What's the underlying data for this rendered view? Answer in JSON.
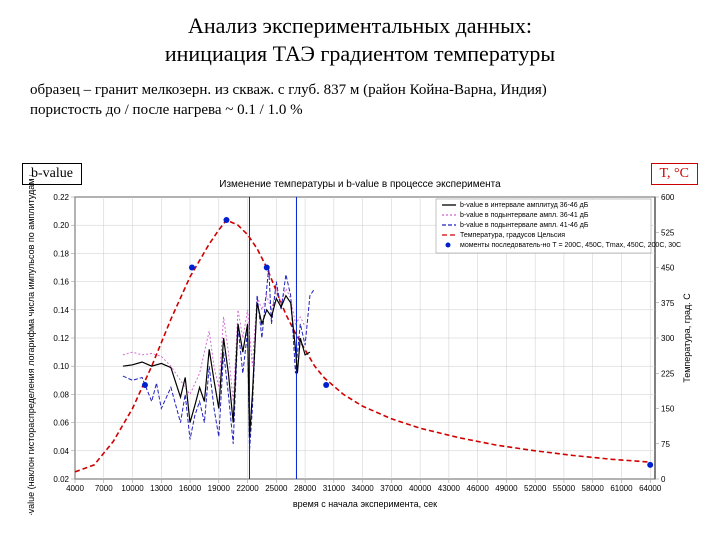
{
  "title_line1": "Анализ экспериментальных данных:",
  "title_line2": "инициация ТАЭ градиентом температуры",
  "subtitle_line1": "образец – гранит мелкозерн. из скваж. с глуб. 837 м (район Койна-Варна, Индия)",
  "subtitle_line2": "пористость до / после нагрева ~ 0.1 / 1.0 %",
  "box_left": "b-value",
  "box_right": "T, °C",
  "chart": {
    "type": "line",
    "title": "Изменение температуры и b-value в процессе эксперимента",
    "xlabel": "время с начала эксперимента, сек",
    "ylabel_left": "b-value (наклон гистораспределения логарифма числа импульсов по амплитудам в дБ)",
    "ylabel_right": "Температура, град. С",
    "plot_bg": "#ffffff",
    "grid_color": "#cccccc",
    "border_color": "#000000",
    "xlim": [
      4000,
      64500
    ],
    "xtick_step": 3000,
    "xticks": [
      4000,
      7000,
      10000,
      13000,
      16000,
      19000,
      22000,
      25000,
      28000,
      31000,
      34000,
      37000,
      40000,
      43000,
      46000,
      49000,
      52000,
      55000,
      58000,
      61000,
      64000
    ],
    "y_left": {
      "lim": [
        0.02,
        0.22
      ],
      "ticks": [
        0.02,
        0.04,
        0.06,
        0.08,
        0.1,
        0.12,
        0.14,
        0.16,
        0.18,
        0.2,
        0.22
      ]
    },
    "y_right": {
      "lim": [
        0,
        600
      ],
      "ticks": [
        0,
        75,
        150,
        225,
        300,
        375,
        450,
        525,
        600
      ]
    },
    "legend": {
      "pos": "top-right",
      "items": [
        {
          "label": "b-value в интервале амплитуд 36-46 дБ",
          "color": "#000000",
          "dash": "",
          "marker": "none"
        },
        {
          "label": "b-value в подынтервале ампл. 36-41 дБ",
          "color": "#d060d0",
          "dash": "2,2",
          "marker": "none"
        },
        {
          "label": "b-value в подынтервале ампл. 41-46 дБ",
          "color": "#2020c0",
          "dash": "4,2",
          "marker": "none"
        },
        {
          "label": "Температура, градусов Цельсия",
          "color": "#d00000",
          "dash": "5,3",
          "marker": "none"
        },
        {
          "label": "моменты последователь-но T = 200C, 450C, Tmax, 450C, 200C, 30C",
          "color": "#0020d0",
          "dash": "",
          "marker": "dot"
        }
      ]
    },
    "series_bvalue_main": {
      "color": "#000000",
      "width": 1.2,
      "dash": "",
      "pts": [
        [
          9000,
          0.1
        ],
        [
          10000,
          0.101
        ],
        [
          11000,
          0.103
        ],
        [
          12000,
          0.1
        ],
        [
          13000,
          0.102
        ],
        [
          14000,
          0.099
        ],
        [
          15000,
          0.078
        ],
        [
          15500,
          0.092
        ],
        [
          16000,
          0.06
        ],
        [
          16500,
          0.072
        ],
        [
          17000,
          0.085
        ],
        [
          17500,
          0.075
        ],
        [
          18000,
          0.112
        ],
        [
          18500,
          0.09
        ],
        [
          19000,
          0.07
        ],
        [
          19500,
          0.12
        ],
        [
          20000,
          0.095
        ],
        [
          20500,
          0.06
        ],
        [
          21000,
          0.13
        ],
        [
          21500,
          0.11
        ],
        [
          22000,
          0.13
        ],
        [
          22200,
          0.05
        ],
        [
          22500,
          0.08
        ],
        [
          23000,
          0.145
        ],
        [
          23500,
          0.13
        ],
        [
          24000,
          0.14
        ],
        [
          24500,
          0.135
        ],
        [
          25000,
          0.148
        ],
        [
          25500,
          0.142
        ],
        [
          26000,
          0.15
        ],
        [
          26500,
          0.145
        ],
        [
          27000,
          0.112
        ],
        [
          27200,
          0.095
        ],
        [
          27500,
          0.12
        ],
        [
          28000,
          0.108
        ],
        [
          28500,
          0.11
        ]
      ]
    },
    "series_bvalue_lo": {
      "color": "#d060d0",
      "width": 0.9,
      "dash": "2,2",
      "pts": [
        [
          9000,
          0.108
        ],
        [
          10000,
          0.11
        ],
        [
          11000,
          0.108
        ],
        [
          12000,
          0.109
        ],
        [
          13000,
          0.107
        ],
        [
          14000,
          0.1
        ],
        [
          15000,
          0.09
        ],
        [
          16000,
          0.08
        ],
        [
          17000,
          0.095
        ],
        [
          18000,
          0.125
        ],
        [
          18500,
          0.1
        ],
        [
          19000,
          0.085
        ],
        [
          19500,
          0.135
        ],
        [
          20000,
          0.11
        ],
        [
          20500,
          0.075
        ],
        [
          21000,
          0.14
        ],
        [
          21500,
          0.12
        ],
        [
          22000,
          0.14
        ],
        [
          22500,
          0.1
        ],
        [
          23000,
          0.15
        ],
        [
          23500,
          0.14
        ],
        [
          24000,
          0.15
        ],
        [
          24500,
          0.14
        ],
        [
          25000,
          0.155
        ],
        [
          25500,
          0.145
        ],
        [
          26000,
          0.155
        ],
        [
          26500,
          0.148
        ],
        [
          27000,
          0.13
        ],
        [
          27500,
          0.135
        ],
        [
          28000,
          0.128
        ]
      ]
    },
    "series_bvalue_hi": {
      "color": "#2020c0",
      "width": 1.0,
      "dash": "4,2",
      "pts": [
        [
          9000,
          0.093
        ],
        [
          10000,
          0.09
        ],
        [
          11000,
          0.092
        ],
        [
          12000,
          0.075
        ],
        [
          12500,
          0.088
        ],
        [
          13000,
          0.07
        ],
        [
          14000,
          0.085
        ],
        [
          15000,
          0.06
        ],
        [
          15500,
          0.08
        ],
        [
          16000,
          0.048
        ],
        [
          16500,
          0.065
        ],
        [
          17000,
          0.075
        ],
        [
          17500,
          0.06
        ],
        [
          18000,
          0.1
        ],
        [
          18500,
          0.07
        ],
        [
          19000,
          0.05
        ],
        [
          19500,
          0.11
        ],
        [
          20000,
          0.08
        ],
        [
          20500,
          0.045
        ],
        [
          21000,
          0.128
        ],
        [
          21500,
          0.095
        ],
        [
          22000,
          0.125
        ],
        [
          22200,
          0.04
        ],
        [
          22500,
          0.07
        ],
        [
          23000,
          0.15
        ],
        [
          23500,
          0.12
        ],
        [
          24000,
          0.155
        ],
        [
          24200,
          0.17
        ],
        [
          24500,
          0.13
        ],
        [
          25000,
          0.16
        ],
        [
          25500,
          0.14
        ],
        [
          26000,
          0.165
        ],
        [
          26500,
          0.15
        ],
        [
          27000,
          0.095
        ],
        [
          27500,
          0.13
        ],
        [
          28000,
          0.115
        ],
        [
          28500,
          0.15
        ],
        [
          29000,
          0.155
        ]
      ]
    },
    "series_temp": {
      "color": "#d00000",
      "width": 1.6,
      "dash": "5,3",
      "pts": [
        [
          4000,
          15
        ],
        [
          6000,
          30
        ],
        [
          8000,
          80
        ],
        [
          10000,
          150
        ],
        [
          12000,
          240
        ],
        [
          14000,
          340
        ],
        [
          16000,
          430
        ],
        [
          18000,
          500
        ],
        [
          19000,
          530
        ],
        [
          19800,
          551
        ],
        [
          21000,
          540
        ],
        [
          22000,
          520
        ],
        [
          23000,
          490
        ],
        [
          24000,
          450
        ],
        [
          25000,
          400
        ],
        [
          26000,
          350
        ],
        [
          27000,
          310
        ],
        [
          28000,
          275
        ],
        [
          29000,
          240
        ],
        [
          30000,
          215
        ],
        [
          32000,
          180
        ],
        [
          34000,
          155
        ],
        [
          37000,
          128
        ],
        [
          40000,
          108
        ],
        [
          44000,
          88
        ],
        [
          48000,
          72
        ],
        [
          52000,
          60
        ],
        [
          56000,
          50
        ],
        [
          60000,
          42
        ],
        [
          64000,
          36
        ]
      ]
    },
    "event_markers": {
      "color": "#0020d0",
      "radius": 3,
      "pts": [
        [
          11300,
          200
        ],
        [
          16200,
          450
        ],
        [
          19800,
          551
        ],
        [
          24000,
          450
        ],
        [
          30200,
          200
        ],
        [
          64000,
          30
        ]
      ]
    },
    "event_vlines_x": [
      22200,
      27100
    ]
  }
}
